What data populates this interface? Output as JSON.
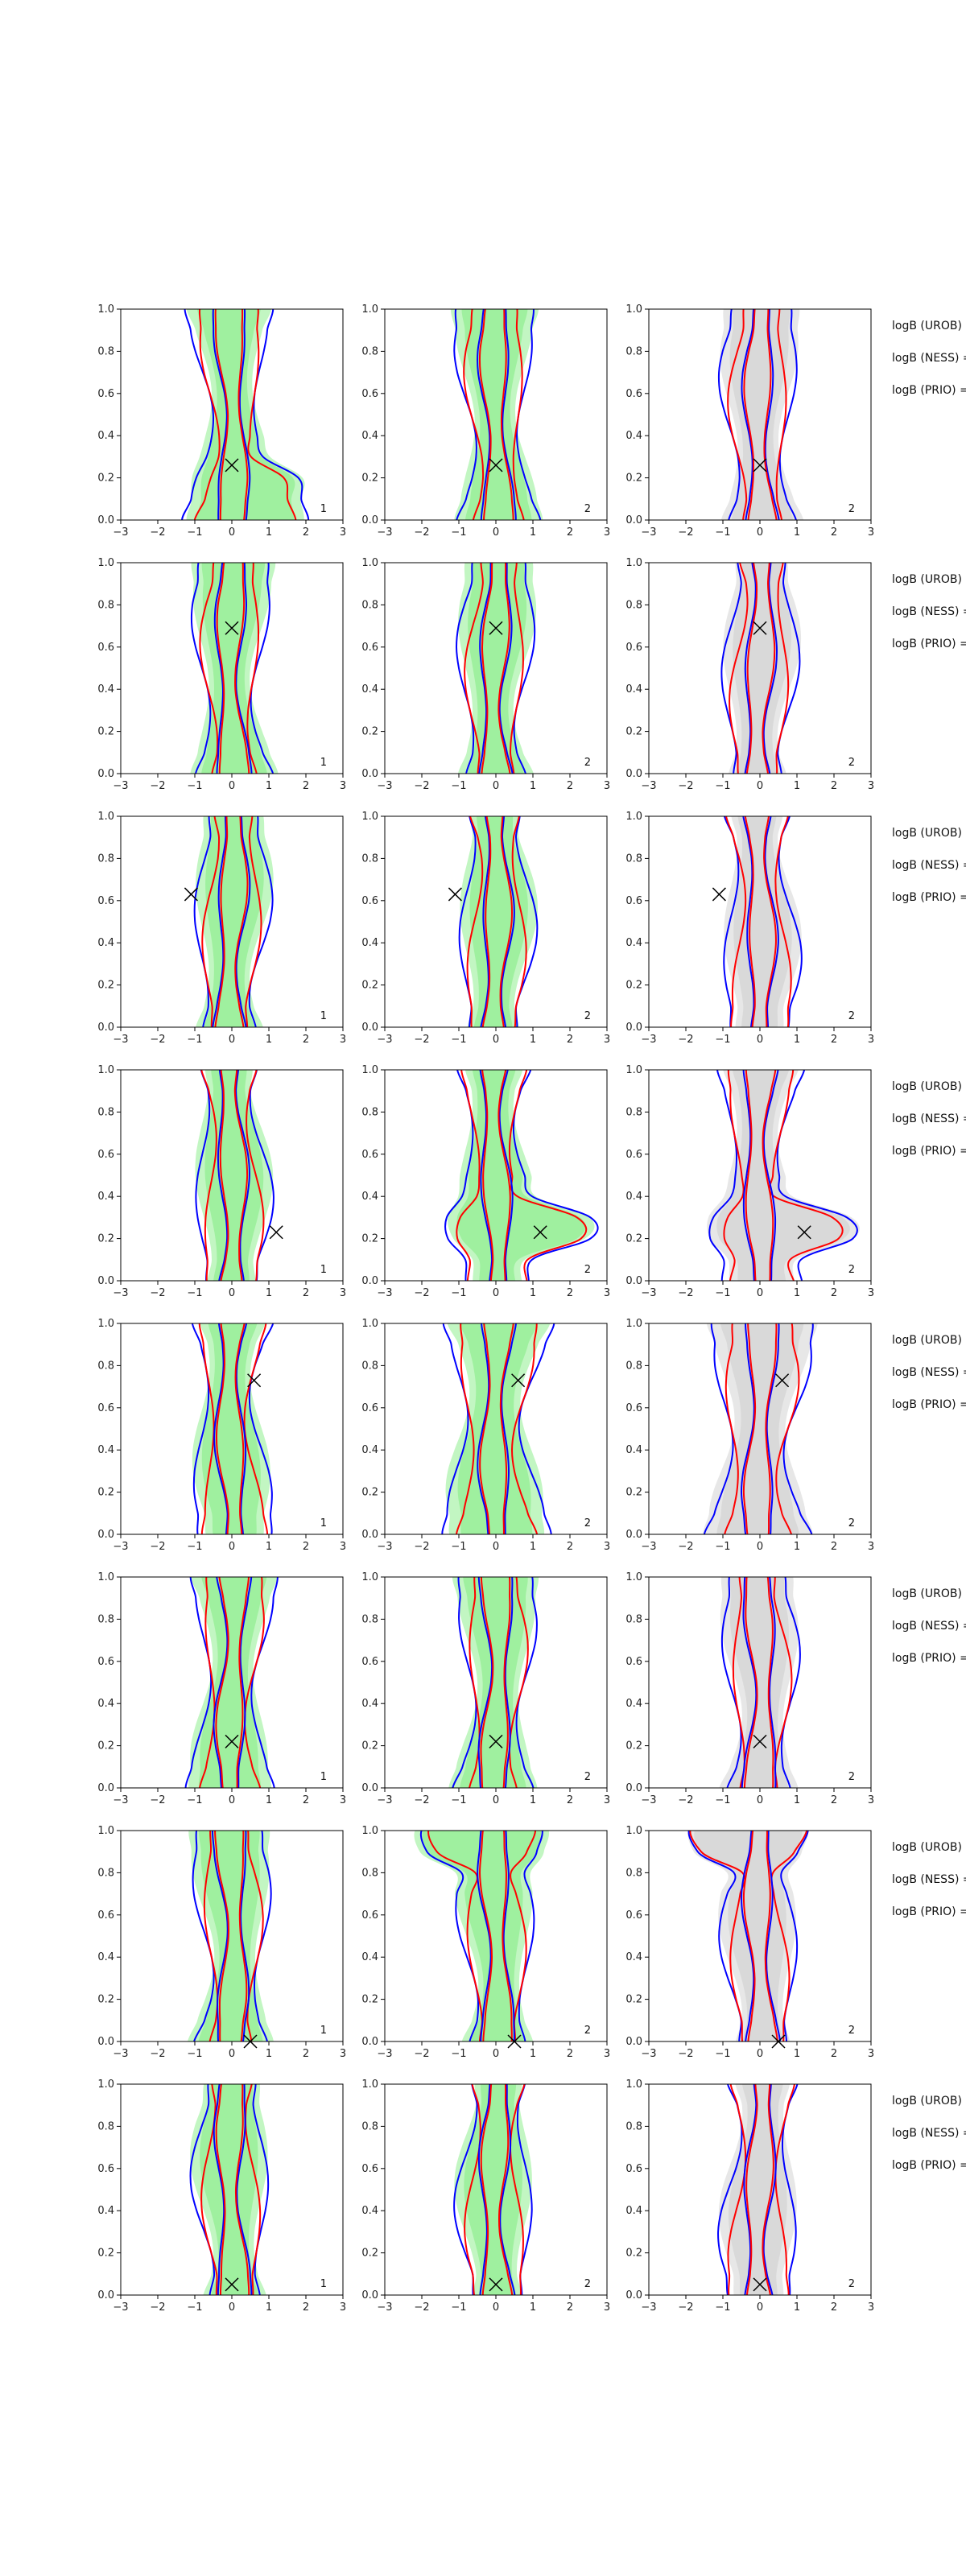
{
  "figure": {
    "title": "",
    "colors": {
      "green_fill": "#90ee90",
      "gray_fill": "#d3d3d3",
      "contour_red": "#ff0000",
      "contour_blue": "#0000ff",
      "marker": "#000000"
    }
  },
  "chart_data": {
    "type": "density-contour-grid",
    "rows": 8,
    "cols": 3,
    "xlim": [
      -3,
      3
    ],
    "ylim": [
      0,
      1
    ],
    "x_ticks": [
      -3,
      -2,
      -1,
      0,
      1,
      2,
      3
    ],
    "y_ticks": [
      0.0,
      0.2,
      0.4,
      0.6,
      0.8,
      1.0
    ],
    "x_tick_labels": [
      "−3",
      "−2",
      "−1",
      "0",
      "1",
      "2",
      "3"
    ],
    "y_tick_labels": [
      "0.0",
      "0.2",
      "0.4",
      "0.6",
      "0.8",
      "1.0"
    ],
    "panel_corner_labels": [
      "1",
      "2",
      "2"
    ],
    "panel_fill": [
      "green",
      "green",
      "gray"
    ],
    "row_labels": [
      "logB (UROB) =",
      "logB (NESS) =",
      "logB (PRIO) ="
    ],
    "markers": [
      {
        "x": 0.0,
        "y": 0.26
      },
      {
        "x": 0.0,
        "y": 0.69
      },
      {
        "x": -1.1,
        "y": 0.63
      },
      {
        "x": 1.2,
        "y": 0.23
      },
      {
        "x": 0.6,
        "y": 0.73
      },
      {
        "x": 0.0,
        "y": 0.22
      },
      {
        "x": 0.5,
        "y": 0.0
      },
      {
        "x": 0.0,
        "y": 0.05
      }
    ]
  }
}
